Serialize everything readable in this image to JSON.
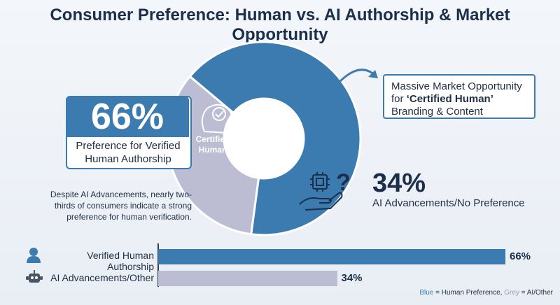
{
  "title": "Consumer Preference: Human vs. AI Authorship & Market Opportunity",
  "colors": {
    "human": "#3c7bb0",
    "ai": "#bcbdd2",
    "dark": "#1c2f4a"
  },
  "callouts": {
    "human_pct": "66%",
    "human_label": "Preference for Verified Human Authorship",
    "certified": "Certified Human",
    "ai_pct": "34%",
    "ai_label": "AI Advancements/No Preference",
    "opportunity_pre": "Massive Market Opportunity for ",
    "opportunity_bold": "‘Certified Human’",
    "opportunity_post": " Branding & Content",
    "note": "Despite AI Advancements, nearly two-thirds of consumers indicate a strong preference for human verification."
  },
  "legend": {
    "blue": "Blue",
    "blue_text": " = Human Preference, ",
    "grey": "Grey",
    "grey_text": " = AI/Other"
  },
  "icons": [
    "brain-check-icon",
    "chip-hand-icon",
    "question-icon",
    "person-icon",
    "robot-icon",
    "arrow-icon"
  ],
  "chart_data": [
    {
      "type": "pie",
      "categories": [
        "Verified Human Authorship",
        "AI Advancements/No Preference"
      ],
      "values": [
        66,
        34
      ],
      "units": "%"
    },
    {
      "type": "bar",
      "orientation": "horizontal",
      "categories": [
        "Verified Human Authorship",
        "AI Advancements/Other"
      ],
      "values": [
        66,
        34
      ],
      "value_labels": [
        "66%",
        "34%"
      ],
      "xlim": [
        0,
        66
      ]
    }
  ]
}
